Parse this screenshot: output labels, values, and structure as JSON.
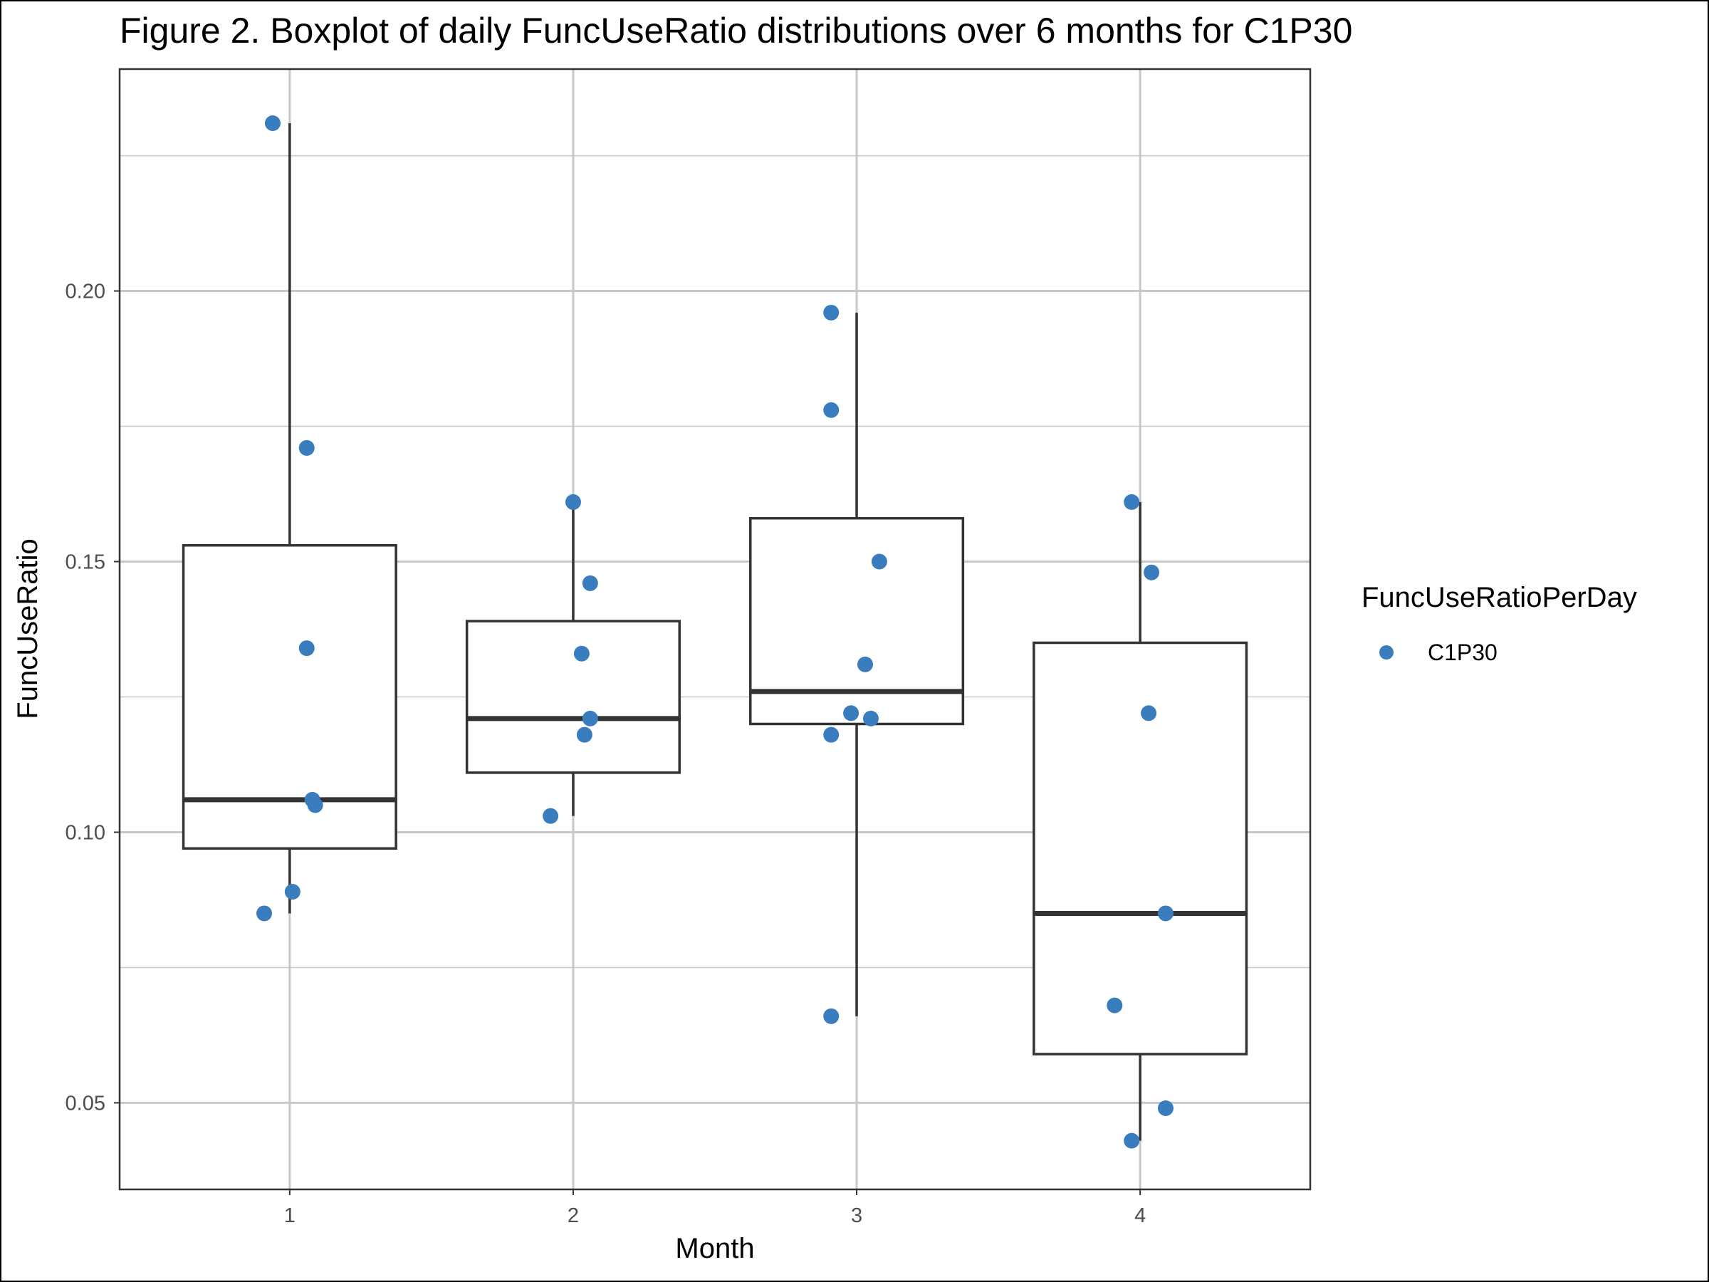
{
  "chart_data": {
    "type": "boxplot",
    "title": "Figure 2. Boxplot of daily FuncUseRatio distributions over 6 months for C1P30",
    "xlabel": "Month",
    "ylabel": "FuncUseRatio",
    "categories": [
      "1",
      "2",
      "3",
      "4"
    ],
    "ylim": [
      0.034,
      0.241
    ],
    "y_ticks": [
      0.05,
      0.1,
      0.15,
      0.2
    ],
    "y_tick_labels": [
      "0.05",
      "0.10",
      "0.15",
      "0.20"
    ],
    "grid": true,
    "legend": {
      "title": "FuncUseRatioPerDay",
      "placement": "right",
      "entries": [
        {
          "label": "C1P30",
          "color": "#3a7dbf"
        }
      ]
    },
    "boxes": [
      {
        "category": "1",
        "whisker_low": 0.085,
        "q1": 0.097,
        "median": 0.106,
        "q3": 0.153,
        "whisker_high": 0.231
      },
      {
        "category": "2",
        "whisker_low": 0.103,
        "q1": 0.111,
        "median": 0.121,
        "q3": 0.139,
        "whisker_high": 0.161
      },
      {
        "category": "3",
        "whisker_low": 0.066,
        "q1": 0.12,
        "median": 0.126,
        "q3": 0.158,
        "whisker_high": 0.196
      },
      {
        "category": "4",
        "whisker_low": 0.043,
        "q1": 0.059,
        "median": 0.085,
        "q3": 0.135,
        "whisker_high": 0.161
      }
    ],
    "points": [
      {
        "month": 1,
        "jitter": -0.06,
        "y": 0.231
      },
      {
        "month": 1,
        "jitter": 0.06,
        "y": 0.171
      },
      {
        "month": 1,
        "jitter": 0.06,
        "y": 0.134
      },
      {
        "month": 1,
        "jitter": 0.08,
        "y": 0.106
      },
      {
        "month": 1,
        "jitter": 0.09,
        "y": 0.105
      },
      {
        "month": 1,
        "jitter": 0.01,
        "y": 0.089
      },
      {
        "month": 1,
        "jitter": -0.09,
        "y": 0.085
      },
      {
        "month": 2,
        "jitter": 0.0,
        "y": 0.161
      },
      {
        "month": 2,
        "jitter": 0.06,
        "y": 0.146
      },
      {
        "month": 2,
        "jitter": 0.03,
        "y": 0.133
      },
      {
        "month": 2,
        "jitter": 0.06,
        "y": 0.121
      },
      {
        "month": 2,
        "jitter": 0.04,
        "y": 0.118
      },
      {
        "month": 2,
        "jitter": -0.08,
        "y": 0.103
      },
      {
        "month": 3,
        "jitter": -0.09,
        "y": 0.196
      },
      {
        "month": 3,
        "jitter": -0.09,
        "y": 0.178
      },
      {
        "month": 3,
        "jitter": 0.08,
        "y": 0.15
      },
      {
        "month": 3,
        "jitter": 0.03,
        "y": 0.131
      },
      {
        "month": 3,
        "jitter": -0.02,
        "y": 0.122
      },
      {
        "month": 3,
        "jitter": 0.05,
        "y": 0.121
      },
      {
        "month": 3,
        "jitter": -0.09,
        "y": 0.118
      },
      {
        "month": 3,
        "jitter": -0.09,
        "y": 0.066
      },
      {
        "month": 4,
        "jitter": -0.03,
        "y": 0.161
      },
      {
        "month": 4,
        "jitter": 0.04,
        "y": 0.148
      },
      {
        "month": 4,
        "jitter": 0.03,
        "y": 0.122
      },
      {
        "month": 4,
        "jitter": 0.09,
        "y": 0.085
      },
      {
        "month": 4,
        "jitter": -0.09,
        "y": 0.068
      },
      {
        "month": 4,
        "jitter": 0.09,
        "y": 0.049
      },
      {
        "month": 4,
        "jitter": -0.03,
        "y": 0.043
      }
    ],
    "colors": {
      "points": "#3a7dbf",
      "box_line": "#333333",
      "grid": "#c8c8c8"
    }
  }
}
